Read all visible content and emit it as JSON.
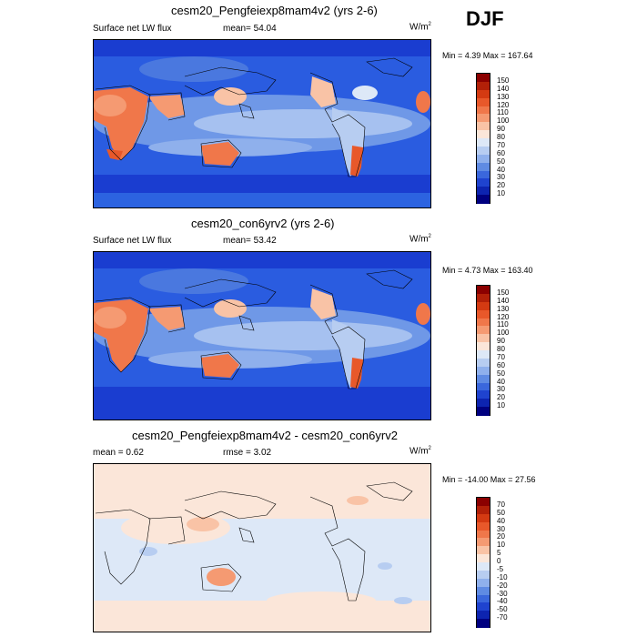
{
  "season": "DJF",
  "panels": [
    {
      "title": "cesm20_Pengfeiexp8mam4v2 (yrs 2-6)",
      "left_label": "Surface net LW flux",
      "mid_label": "mean=  54.04",
      "units": "W/m",
      "units_sup": "2",
      "minmax": "Min =   4.39 Max = 167.64"
    },
    {
      "title": "cesm20_con6yrv2 (yrs 2-6)",
      "left_label": "Surface net LW flux",
      "mid_label": "mean=  53.42",
      "units": "W/m",
      "units_sup": "2",
      "minmax": "Min =   4.73 Max = 163.40"
    },
    {
      "title": "cesm20_Pengfeiexp8mam4v2 - cesm20_con6yrv2",
      "left_label": "mean =   0.62",
      "mid_label": "rmse =   3.02",
      "units": "W/m",
      "units_sup": "2",
      "minmax": "Min = -14.00 Max =  27.56"
    }
  ],
  "colorbar_abs": {
    "labels": [
      "150",
      "140",
      "130",
      "120",
      "110",
      "100",
      "90",
      "80",
      "70",
      "60",
      "50",
      "40",
      "30",
      "20",
      "10"
    ],
    "colors": [
      "#8b0000",
      "#b22008",
      "#d43a12",
      "#e8582a",
      "#f0774a",
      "#f59a72",
      "#f9c3a6",
      "#fbe6d9",
      "#dde8f7",
      "#b7cdf1",
      "#8fb0ec",
      "#5f8be3",
      "#3a67dc",
      "#1f43cf",
      "#0d24b0",
      "#000080"
    ]
  },
  "colorbar_diff": {
    "labels": [
      "70",
      "50",
      "40",
      "30",
      "20",
      "10",
      "5",
      "0",
      "-5",
      "-10",
      "-20",
      "-30",
      "-40",
      "-50",
      "-70"
    ],
    "colors": [
      "#8b0000",
      "#b22008",
      "#d43a12",
      "#e8582a",
      "#f0774a",
      "#f59a72",
      "#f9c3a6",
      "#fbe6d9",
      "#dde8f7",
      "#b7cdf1",
      "#8fb0ec",
      "#5f8be3",
      "#3a67dc",
      "#1f43cf",
      "#0d24b0",
      "#000080"
    ]
  }
}
